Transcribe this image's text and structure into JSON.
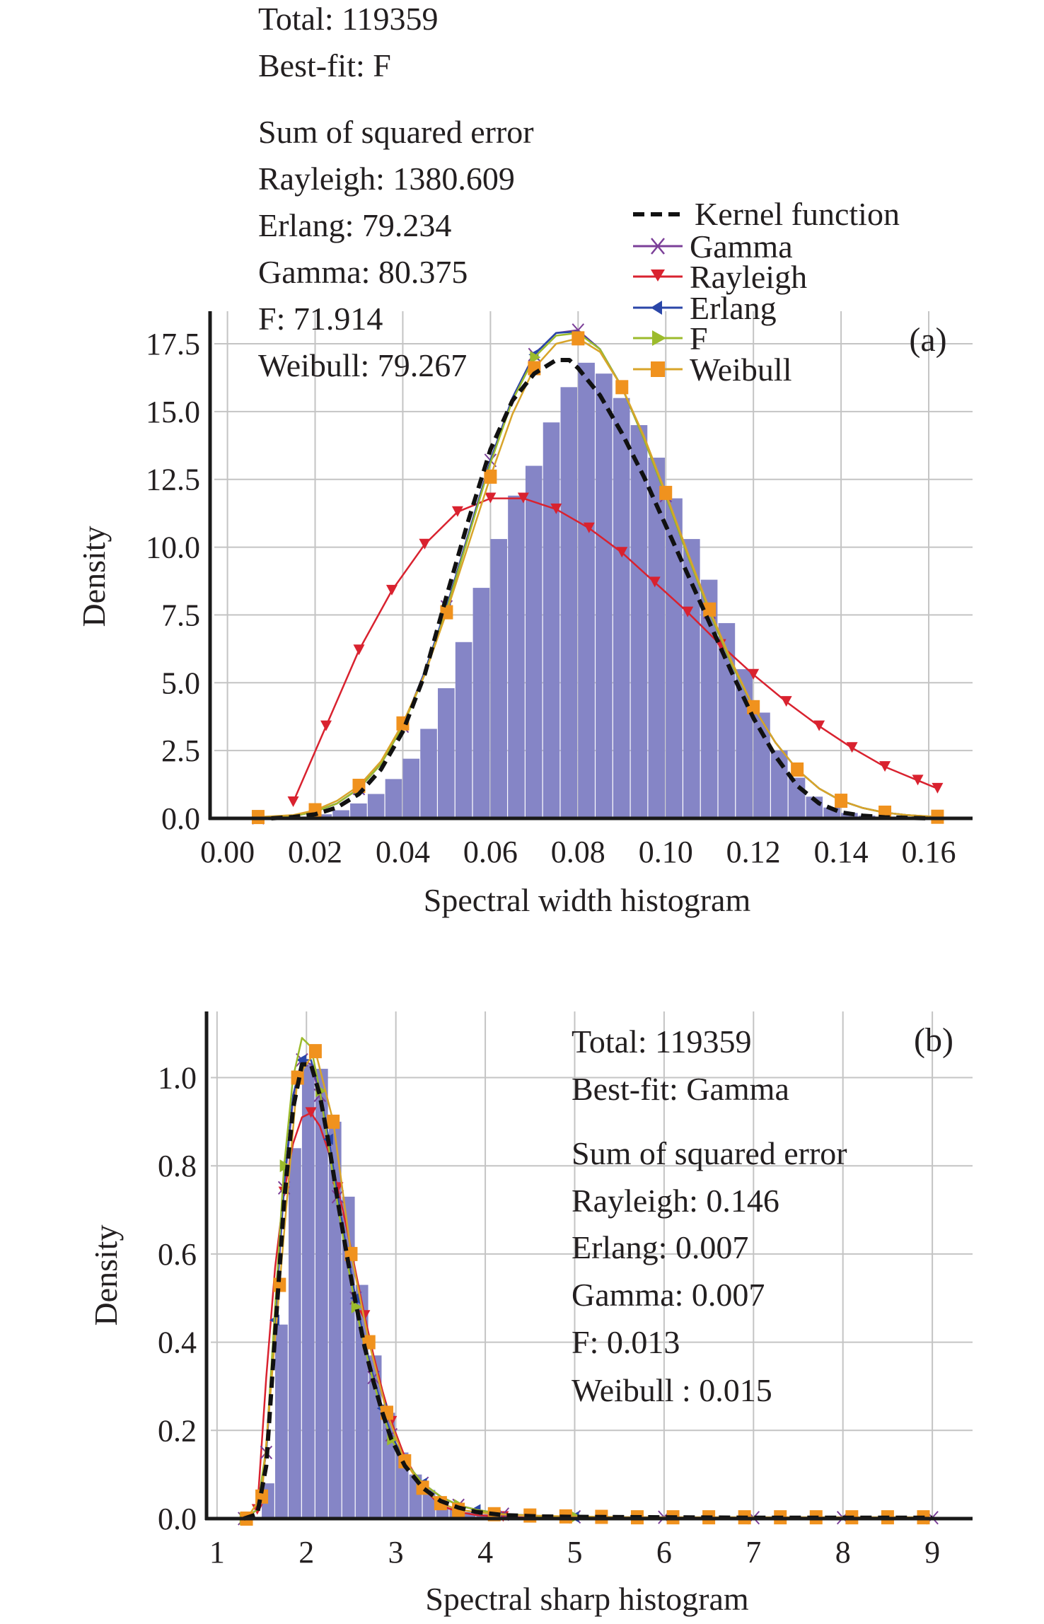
{
  "colors": {
    "histogram": "#8585c6",
    "kernel": "#111111",
    "gamma": "#7b3f98",
    "rayleigh": "#d9222f",
    "erlang": "#2a46a8",
    "f": "#9cbb2c",
    "weibull": "#f0921e",
    "weibull_line": "#d8a42a",
    "grid": "#c4c4c4",
    "axis": "#1a1a1a"
  },
  "legend": {
    "placement": "top-right of panel (a)",
    "entries": [
      {
        "key": "kernel",
        "label": "Kernel function",
        "marker": "dashed-line"
      },
      {
        "key": "gamma",
        "label": "Gamma",
        "marker": "x-mark"
      },
      {
        "key": "rayleigh",
        "label": "Rayleigh",
        "marker": "down-triangle"
      },
      {
        "key": "erlang",
        "label": "Erlang",
        "marker": "left-triangle"
      },
      {
        "key": "f",
        "label": "F",
        "marker": "right-triangle"
      },
      {
        "key": "weibull",
        "label": "Weibull",
        "marker": "square"
      }
    ]
  },
  "panels": {
    "a": {
      "panel_label": "(a)",
      "stats": [
        "Total: 119359",
        "Best-fit: F",
        "Sum of squared error",
        "Rayleigh: 1380.609",
        "Erlang: 79.234",
        "Gamma: 80.375",
        "F: 71.914",
        "Weibull: 79.267"
      ]
    },
    "b": {
      "panel_label": "(b)",
      "stats": [
        "Total: 119359",
        "Best-fit: Gamma",
        "Sum of squared error",
        "Rayleigh: 0.146",
        "Erlang: 0.007",
        "Gamma: 0.007",
        "F: 0.013",
        "Weibull : 0.015"
      ]
    }
  },
  "chart_data": [
    {
      "type": "bar",
      "subtype": "histogram with fitted density curves",
      "title": "",
      "panel": "(a)",
      "xlabel": "Spectral width histogram",
      "ylabel": "Density",
      "xlim": [
        -0.003,
        0.17
      ],
      "ylim": [
        0,
        18.7
      ],
      "xticks": [
        0.0,
        0.02,
        0.04,
        0.06,
        0.08,
        0.1,
        0.12,
        0.14,
        0.16
      ],
      "xtick_labels": [
        "0.00",
        "0.02",
        "0.04",
        "0.06",
        "0.08",
        "0.10",
        "0.12",
        "0.14",
        "0.16"
      ],
      "yticks": [
        0,
        2.5,
        5,
        7.5,
        10,
        12.5,
        15,
        17.5
      ],
      "ytick_labels": [
        "0.0",
        "2.5",
        "5.0",
        "7.5",
        "10.0",
        "12.5",
        "15.0",
        "17.5"
      ],
      "grid": true,
      "histogram": {
        "bin_start": 0.02,
        "bin_width": 0.004,
        "values": [
          0.15,
          0.3,
          0.55,
          0.9,
          1.45,
          2.2,
          3.3,
          4.8,
          6.5,
          8.5,
          10.3,
          11.9,
          13.0,
          14.6,
          15.9,
          16.8,
          16.4,
          15.5,
          14.5,
          13.3,
          11.8,
          10.3,
          8.8,
          7.2,
          5.5,
          3.9,
          2.5,
          1.5,
          0.8,
          0.4,
          0.2,
          0.1
        ]
      },
      "series": [
        {
          "name": "Kernel function",
          "key": "kernel",
          "style": "dashed",
          "x": [
            0.01,
            0.015,
            0.02,
            0.025,
            0.03,
            0.035,
            0.04,
            0.045,
            0.05,
            0.055,
            0.06,
            0.065,
            0.07,
            0.075,
            0.078,
            0.08,
            0.085,
            0.09,
            0.095,
            0.1,
            0.105,
            0.11,
            0.115,
            0.12,
            0.125,
            0.13,
            0.135,
            0.14,
            0.145,
            0.15,
            0.155,
            0.16
          ],
          "y": [
            0.0,
            0.05,
            0.15,
            0.4,
            0.9,
            1.8,
            3.2,
            5.3,
            8.2,
            11.0,
            13.6,
            15.4,
            16.4,
            16.9,
            16.9,
            16.6,
            15.6,
            14.2,
            12.6,
            10.8,
            9.0,
            7.2,
            5.4,
            3.7,
            2.3,
            1.2,
            0.55,
            0.22,
            0.1,
            0.04,
            0.02,
            0.0
          ]
        },
        {
          "name": "Gamma",
          "key": "gamma",
          "x": [
            0.007,
            0.015,
            0.02,
            0.025,
            0.03,
            0.035,
            0.04,
            0.045,
            0.05,
            0.055,
            0.06,
            0.065,
            0.07,
            0.075,
            0.08,
            0.085,
            0.09,
            0.095,
            0.1,
            0.105,
            0.11,
            0.115,
            0.12,
            0.125,
            0.13,
            0.135,
            0.14,
            0.145,
            0.15,
            0.155,
            0.162
          ],
          "y": [
            0.02,
            0.08,
            0.25,
            0.55,
            1.1,
            2.0,
            3.4,
            5.4,
            7.8,
            10.5,
            13.2,
            15.5,
            17.1,
            17.9,
            18.0,
            17.3,
            15.9,
            14.0,
            11.9,
            9.7,
            7.6,
            5.7,
            4.1,
            2.8,
            1.8,
            1.1,
            0.65,
            0.38,
            0.21,
            0.12,
            0.05
          ],
          "marker_every": 2
        },
        {
          "name": "Rayleigh",
          "key": "rayleigh",
          "x": [
            0.015,
            0.0225,
            0.03,
            0.0375,
            0.045,
            0.0525,
            0.06,
            0.0675,
            0.075,
            0.0825,
            0.09,
            0.0975,
            0.105,
            0.1125,
            0.12,
            0.1275,
            0.135,
            0.1425,
            0.15,
            0.1575,
            0.162
          ],
          "y": [
            0.6,
            3.4,
            6.2,
            8.4,
            10.1,
            11.3,
            11.8,
            11.8,
            11.4,
            10.7,
            9.8,
            8.7,
            7.6,
            6.4,
            5.3,
            4.3,
            3.4,
            2.6,
            1.9,
            1.4,
            1.1
          ],
          "marker_every": 1
        },
        {
          "name": "Erlang",
          "key": "erlang",
          "x": [
            0.007,
            0.015,
            0.02,
            0.025,
            0.03,
            0.035,
            0.04,
            0.045,
            0.05,
            0.055,
            0.06,
            0.065,
            0.07,
            0.075,
            0.08,
            0.085,
            0.09,
            0.095,
            0.1,
            0.105,
            0.11,
            0.115,
            0.12,
            0.125,
            0.13,
            0.135,
            0.14,
            0.145,
            0.15,
            0.155,
            0.162
          ],
          "y": [
            0.02,
            0.08,
            0.25,
            0.55,
            1.1,
            2.0,
            3.4,
            5.4,
            7.8,
            10.5,
            13.2,
            15.5,
            17.1,
            17.9,
            17.95,
            17.3,
            15.9,
            14.0,
            11.9,
            9.7,
            7.6,
            5.7,
            4.1,
            2.8,
            1.8,
            1.1,
            0.65,
            0.38,
            0.21,
            0.12,
            0.05
          ],
          "marker_every": 4
        },
        {
          "name": "F",
          "key": "f",
          "x": [
            0.007,
            0.015,
            0.02,
            0.025,
            0.03,
            0.035,
            0.04,
            0.045,
            0.05,
            0.055,
            0.06,
            0.065,
            0.07,
            0.075,
            0.08,
            0.085,
            0.09,
            0.095,
            0.1,
            0.105,
            0.11,
            0.115,
            0.12,
            0.125,
            0.13,
            0.135,
            0.14,
            0.145,
            0.15,
            0.155,
            0.162
          ],
          "y": [
            0.02,
            0.08,
            0.25,
            0.55,
            1.1,
            2.0,
            3.4,
            5.3,
            7.7,
            10.4,
            13.1,
            15.4,
            17.0,
            17.8,
            17.9,
            17.3,
            15.9,
            14.0,
            11.9,
            9.7,
            7.6,
            5.7,
            4.1,
            2.8,
            1.8,
            1.1,
            0.65,
            0.38,
            0.21,
            0.12,
            0.05
          ],
          "marker_every": 4
        },
        {
          "name": "Weibull",
          "key": "weibull",
          "x": [
            0.007,
            0.015,
            0.02,
            0.025,
            0.03,
            0.035,
            0.04,
            0.045,
            0.05,
            0.055,
            0.06,
            0.065,
            0.07,
            0.075,
            0.08,
            0.085,
            0.09,
            0.095,
            0.1,
            0.105,
            0.11,
            0.115,
            0.12,
            0.125,
            0.13,
            0.135,
            0.14,
            0.145,
            0.15,
            0.155,
            0.162
          ],
          "y": [
            0.05,
            0.12,
            0.3,
            0.65,
            1.2,
            2.1,
            3.5,
            5.3,
            7.6,
            10.1,
            12.6,
            14.9,
            16.6,
            17.5,
            17.7,
            17.2,
            15.9,
            14.1,
            12.0,
            9.8,
            7.7,
            5.8,
            4.1,
            2.8,
            1.8,
            1.1,
            0.65,
            0.38,
            0.21,
            0.12,
            0.06
          ],
          "marker_every": 2
        }
      ]
    },
    {
      "type": "bar",
      "subtype": "histogram with fitted density curves",
      "title": "",
      "panel": "(b)",
      "xlabel": "Spectral sharp  histogram",
      "ylabel": "Density",
      "xlim": [
        0.93,
        9.45
      ],
      "ylim": [
        0,
        1.15
      ],
      "xticks": [
        1,
        2,
        3,
        4,
        5,
        6,
        7,
        8,
        9
      ],
      "xtick_labels": [
        "1",
        "2",
        "3",
        "4",
        "5",
        "6",
        "7",
        "8",
        "9"
      ],
      "yticks": [
        0,
        0.2,
        0.4,
        0.6,
        0.8,
        1.0
      ],
      "ytick_labels": [
        "0.0",
        "0.2",
        "0.4",
        "0.6",
        "0.8",
        "1.0"
      ],
      "grid": true,
      "histogram": {
        "bin_start": 1.5,
        "bin_width": 0.15,
        "values": [
          0.08,
          0.44,
          0.84,
          1.03,
          1.02,
          0.9,
          0.73,
          0.53,
          0.37,
          0.24,
          0.15,
          0.1,
          0.065,
          0.04,
          0.025,
          0.015,
          0.01,
          0.006,
          0.004,
          0.003
        ]
      },
      "series": [
        {
          "name": "Kernel function",
          "key": "kernel",
          "style": "dashed",
          "x": [
            1.3,
            1.45,
            1.55,
            1.65,
            1.75,
            1.85,
            1.95,
            2.05,
            2.15,
            2.25,
            2.35,
            2.45,
            2.55,
            2.65,
            2.75,
            2.85,
            2.95,
            3.1,
            3.3,
            3.5,
            3.7,
            3.9,
            4.2,
            4.6,
            5.0,
            6.0,
            7.0,
            8.0,
            9.0
          ],
          "y": [
            0.0,
            0.01,
            0.12,
            0.42,
            0.72,
            0.93,
            1.03,
            1.03,
            0.96,
            0.85,
            0.72,
            0.6,
            0.49,
            0.39,
            0.31,
            0.24,
            0.18,
            0.12,
            0.07,
            0.04,
            0.025,
            0.015,
            0.008,
            0.005,
            0.004,
            0.003,
            0.002,
            0.002,
            0.002
          ]
        },
        {
          "name": "Gamma",
          "key": "gamma",
          "x": [
            1.3,
            1.45,
            1.55,
            1.65,
            1.75,
            1.85,
            1.95,
            2.05,
            2.15,
            2.25,
            2.35,
            2.45,
            2.55,
            2.65,
            2.75,
            2.85,
            2.95,
            3.1,
            3.3,
            3.5,
            3.7,
            3.9,
            4.2,
            4.6,
            5.0,
            5.5,
            6.0,
            6.5,
            7.0,
            7.5,
            8.0,
            8.5,
            9.0
          ],
          "y": [
            0.0,
            0.02,
            0.15,
            0.45,
            0.75,
            0.95,
            1.04,
            1.03,
            0.96,
            0.85,
            0.73,
            0.61,
            0.5,
            0.4,
            0.32,
            0.25,
            0.19,
            0.13,
            0.08,
            0.05,
            0.03,
            0.02,
            0.01,
            0.006,
            0.004,
            0.003,
            0.003,
            0.002,
            0.002,
            0.002,
            0.002,
            0.002,
            0.002
          ],
          "marker_every": 2
        },
        {
          "name": "Rayleigh",
          "key": "rayleigh",
          "x": [
            1.45,
            1.55,
            1.65,
            1.75,
            1.85,
            1.95,
            2.05,
            2.15,
            2.25,
            2.35,
            2.45,
            2.55,
            2.65,
            2.75,
            2.85,
            2.95,
            3.1,
            3.3,
            3.5,
            3.7,
            3.9,
            4.2,
            4.6,
            5.0
          ],
          "y": [
            0.02,
            0.32,
            0.57,
            0.74,
            0.85,
            0.91,
            0.92,
            0.89,
            0.83,
            0.75,
            0.66,
            0.56,
            0.46,
            0.37,
            0.29,
            0.22,
            0.14,
            0.07,
            0.03,
            0.015,
            0.008,
            0.004,
            0.002,
            0.001
          ],
          "marker_every": 3
        },
        {
          "name": "Erlang",
          "key": "erlang",
          "x": [
            1.3,
            1.45,
            1.55,
            1.65,
            1.75,
            1.85,
            1.95,
            2.05,
            2.15,
            2.25,
            2.35,
            2.45,
            2.55,
            2.65,
            2.75,
            2.85,
            2.95,
            3.1,
            3.3,
            3.5,
            3.7,
            3.9,
            4.2,
            4.6,
            5.0
          ],
          "y": [
            0.0,
            0.02,
            0.15,
            0.45,
            0.76,
            0.96,
            1.04,
            1.04,
            0.97,
            0.86,
            0.73,
            0.61,
            0.5,
            0.4,
            0.32,
            0.25,
            0.19,
            0.13,
            0.08,
            0.05,
            0.03,
            0.02,
            0.01,
            0.006,
            0.004
          ],
          "marker_every": 3
        },
        {
          "name": "F",
          "key": "f",
          "x": [
            1.3,
            1.45,
            1.55,
            1.65,
            1.75,
            1.85,
            1.95,
            2.05,
            2.15,
            2.25,
            2.35,
            2.45,
            2.55,
            2.65,
            2.75,
            2.85,
            2.95,
            3.1,
            3.3,
            3.5,
            3.7,
            3.9,
            4.2,
            4.6,
            5.0
          ],
          "y": [
            0.0,
            0.02,
            0.16,
            0.48,
            0.8,
            1.0,
            1.09,
            1.07,
            0.97,
            0.84,
            0.71,
            0.59,
            0.48,
            0.39,
            0.31,
            0.24,
            0.18,
            0.13,
            0.08,
            0.05,
            0.03,
            0.02,
            0.01,
            0.006,
            0.004
          ],
          "marker_every": 4
        },
        {
          "name": "Weibull",
          "key": "weibull",
          "x": [
            1.33,
            1.5,
            1.7,
            1.9,
            2.1,
            2.3,
            2.5,
            2.7,
            2.9,
            3.1,
            3.3,
            3.5,
            3.7,
            4.1,
            4.5,
            4.9,
            5.3,
            5.7,
            6.1,
            6.5,
            6.9,
            7.3,
            7.7,
            8.1,
            8.5,
            8.9
          ],
          "y": [
            0.0,
            0.05,
            0.53,
            1.0,
            1.06,
            0.9,
            0.6,
            0.4,
            0.24,
            0.13,
            0.07,
            0.035,
            0.02,
            0.01,
            0.007,
            0.005,
            0.004,
            0.003,
            0.003,
            0.003,
            0.003,
            0.003,
            0.003,
            0.003,
            0.003,
            0.003
          ],
          "marker_every": 1
        }
      ]
    }
  ]
}
